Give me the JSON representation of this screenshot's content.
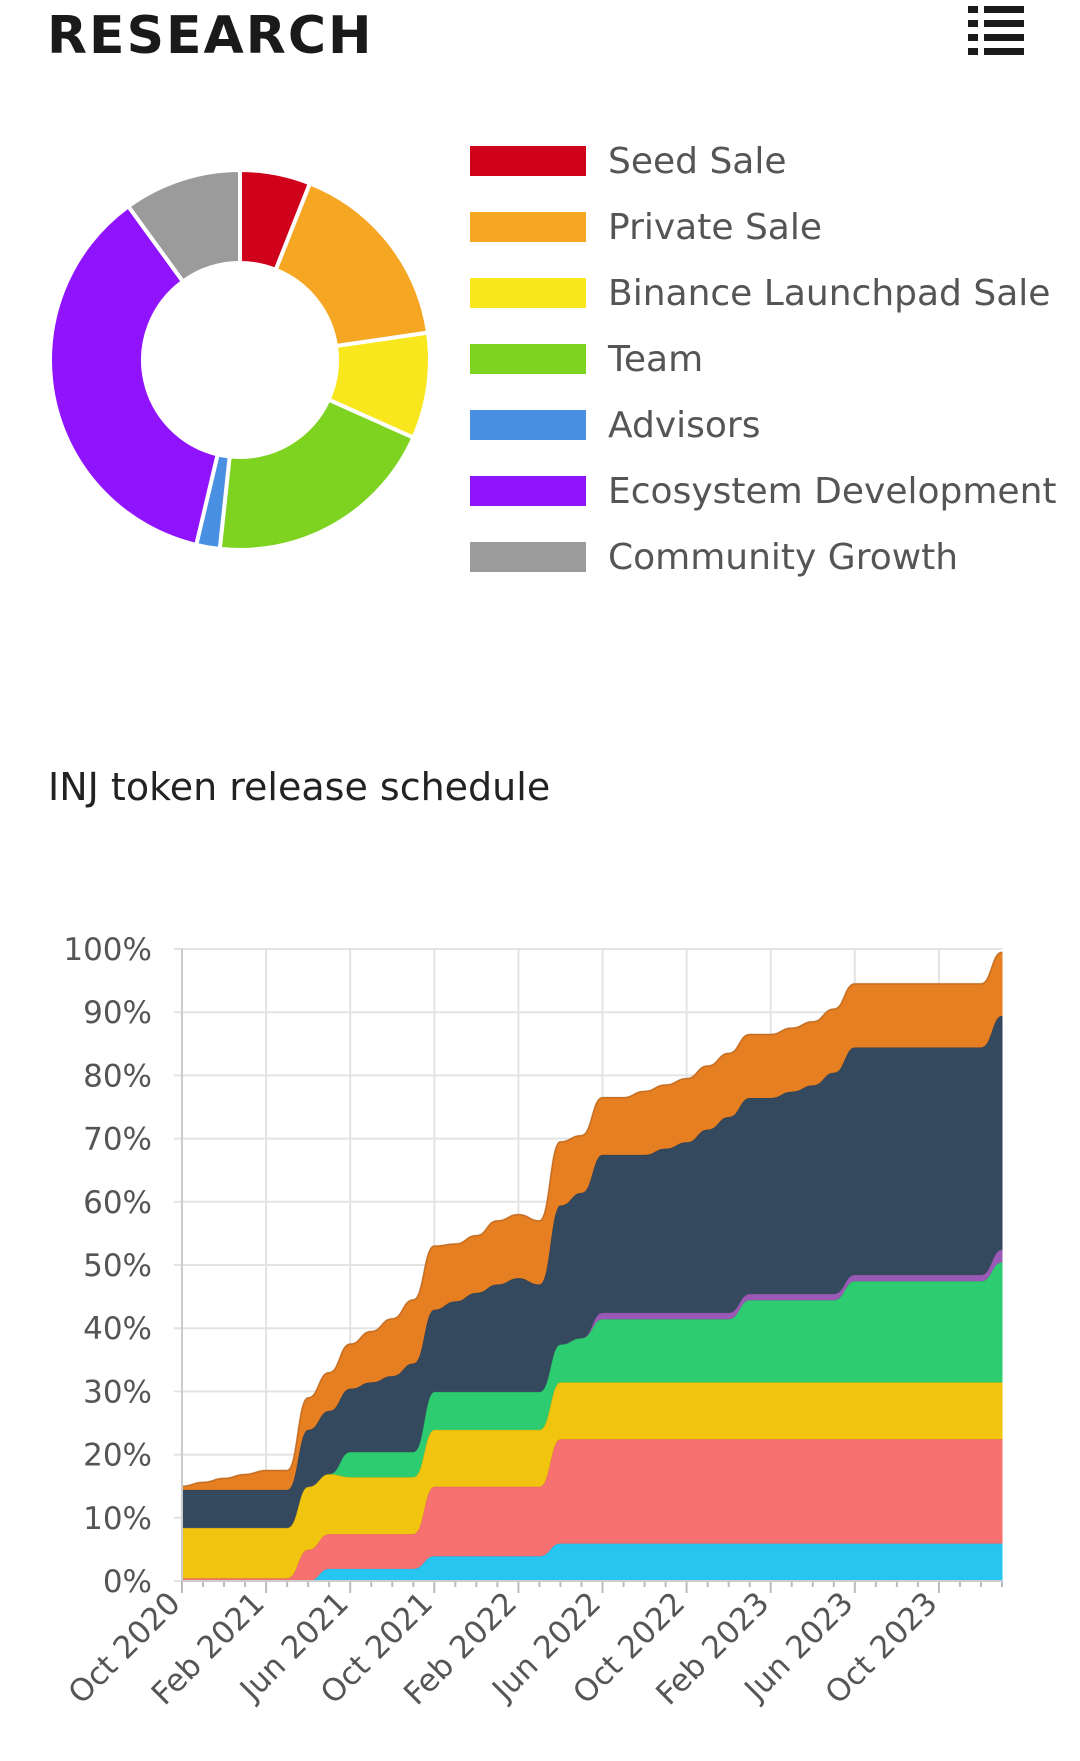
{
  "header": {
    "title": "RESEARCH",
    "menu_icon": "list-menu-icon"
  },
  "distribution": {
    "chart_data": {
      "type": "pie",
      "categories": [
        "Seed Sale",
        "Private Sale",
        "Binance Launchpad Sale",
        "Team",
        "Advisors",
        "Ecosystem Development",
        "Community Growth"
      ],
      "values": [
        6.0,
        16.7,
        9.0,
        20.0,
        2.0,
        36.3,
        10.0
      ],
      "colors": [
        "#d0021b",
        "#f5a623",
        "#f8e71c",
        "#7ed321",
        "#4a90e2",
        "#9013fe",
        "#9b9b9b"
      ]
    }
  },
  "schedule": {
    "title": "INJ token release schedule",
    "chart_data": {
      "type": "area",
      "stacked": true,
      "x_labels": [
        "Oct 2020",
        "Feb 2021",
        "Jun 2021",
        "Oct 2021",
        "Feb 2022",
        "Jun 2022",
        "Oct 2022",
        "Feb 2023",
        "Jun 2023",
        "Oct 2023"
      ],
      "y_ticks": [
        "0%",
        "10%",
        "20%",
        "30%",
        "40%",
        "50%",
        "60%",
        "70%",
        "80%",
        "90%",
        "100%"
      ],
      "ylim": [
        0,
        100
      ],
      "x_months_range": [
        0,
        39
      ],
      "grid": true,
      "series": [
        {
          "color": "#26c6f0",
          "points": [
            [
              0,
              0
            ],
            [
              5,
              0
            ],
            [
              6,
              0
            ],
            [
              7,
              2
            ],
            [
              8,
              2
            ],
            [
              11,
              2
            ],
            [
              12,
              4
            ],
            [
              17,
              4
            ],
            [
              18,
              6
            ],
            [
              39,
              6
            ]
          ]
        },
        {
          "color": "#f87171",
          "points": [
            [
              0,
              0.5
            ],
            [
              5,
              0.5
            ],
            [
              6,
              5
            ],
            [
              7,
              5.5
            ],
            [
              8,
              5.5
            ],
            [
              11,
              5.5
            ],
            [
              12,
              11
            ],
            [
              17,
              11
            ],
            [
              18,
              16.5
            ],
            [
              39,
              16.5
            ]
          ]
        },
        {
          "color": "#f1c40f",
          "points": [
            [
              0,
              8
            ],
            [
              5,
              8
            ],
            [
              6,
              10
            ],
            [
              8,
              9
            ],
            [
              11,
              9
            ],
            [
              12,
              9
            ],
            [
              17,
              9
            ],
            [
              18,
              9
            ],
            [
              39,
              9
            ]
          ]
        },
        {
          "color": "#2ecc71",
          "points": [
            [
              0,
              0
            ],
            [
              7,
              0
            ],
            [
              8,
              4
            ],
            [
              11,
              4
            ],
            [
              12,
              6
            ],
            [
              17,
              6
            ],
            [
              18,
              6
            ],
            [
              19,
              7
            ],
            [
              20,
              10
            ],
            [
              26,
              10
            ],
            [
              27,
              13
            ],
            [
              31,
              13
            ],
            [
              32,
              16
            ],
            [
              38,
              16
            ],
            [
              39,
              19
            ]
          ]
        },
        {
          "color": "#9b59b6",
          "points": [
            [
              0,
              0
            ],
            [
              7,
              0
            ],
            [
              11,
              0
            ],
            [
              12,
              0
            ],
            [
              19,
              0
            ],
            [
              20,
              1
            ],
            [
              26,
              1
            ],
            [
              27,
              1
            ],
            [
              31,
              1
            ],
            [
              32,
              1
            ],
            [
              38,
              1
            ],
            [
              39,
              2
            ]
          ]
        },
        {
          "color": "#34495e",
          "points": [
            [
              0,
              6
            ],
            [
              5,
              6
            ],
            [
              6,
              9
            ],
            [
              7,
              10
            ],
            [
              8,
              10
            ],
            [
              10,
              12
            ],
            [
              11,
              14
            ],
            [
              12,
              13
            ],
            [
              15,
              17
            ],
            [
              16,
              18
            ],
            [
              17,
              17
            ],
            [
              18,
              22
            ],
            [
              19,
              23
            ],
            [
              20,
              25
            ],
            [
              21,
              25
            ],
            [
              22,
              25
            ],
            [
              23,
              26
            ],
            [
              24,
              27
            ],
            [
              25,
              29
            ],
            [
              26,
              31
            ],
            [
              27,
              31
            ],
            [
              28,
              31
            ],
            [
              29,
              32
            ],
            [
              30,
              33
            ],
            [
              31,
              35
            ],
            [
              32,
              36
            ],
            [
              34,
              36
            ],
            [
              35,
              36
            ],
            [
              36,
              36
            ],
            [
              37,
              36
            ],
            [
              38,
              36
            ],
            [
              39,
              37
            ]
          ]
        },
        {
          "color": "#e67e22",
          "points": [
            [
              0,
              0.5
            ],
            [
              4,
              3
            ],
            [
              5,
              3
            ],
            [
              6,
              5
            ],
            [
              7,
              6
            ],
            [
              8,
              7
            ],
            [
              9,
              8
            ],
            [
              10,
              9
            ],
            [
              11,
              10
            ],
            [
              12,
              10
            ],
            [
              13,
              9
            ],
            [
              14,
              9
            ],
            [
              15,
              10
            ],
            [
              16,
              10
            ],
            [
              17,
              10
            ],
            [
              18,
              10
            ],
            [
              19,
              9
            ],
            [
              20,
              9
            ],
            [
              21,
              9
            ],
            [
              22,
              10
            ],
            [
              23,
              10
            ],
            [
              24,
              10
            ],
            [
              25,
              10
            ],
            [
              26,
              10
            ],
            [
              27,
              10
            ],
            [
              28,
              10
            ],
            [
              29,
              10
            ],
            [
              30,
              10
            ],
            [
              31,
              10
            ],
            [
              32,
              10
            ],
            [
              33,
              10
            ],
            [
              34,
              10
            ],
            [
              35,
              10
            ],
            [
              36,
              10
            ],
            [
              37,
              10
            ],
            [
              38,
              10
            ],
            [
              39,
              10
            ]
          ]
        }
      ]
    }
  }
}
